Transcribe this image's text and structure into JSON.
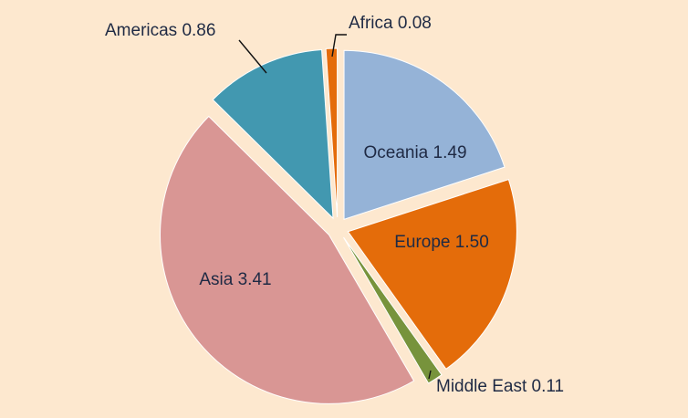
{
  "chart_data": {
    "type": "pie",
    "title": "",
    "slices": [
      {
        "name": "Oceania",
        "value": 1.49,
        "value_label": "1.49",
        "color": "#95b3d7"
      },
      {
        "name": "Europe",
        "value": 1.5,
        "value_label": "1.50",
        "color": "#e46c0a"
      },
      {
        "name": "Middle East",
        "value": 0.11,
        "value_label": "0.11",
        "color": "#77933c"
      },
      {
        "name": "Asia",
        "value": 3.41,
        "value_label": "3.41",
        "color": "#d99694"
      },
      {
        "name": "Americas",
        "value": 0.86,
        "value_label": "0.86",
        "color": "#4298b0"
      },
      {
        "name": "Africa",
        "value": 0.08,
        "value_label": "0.08",
        "color": "#e46c0a"
      }
    ],
    "legend": "none",
    "exploded": true
  },
  "colors": {
    "background": "#fde8cf",
    "label_text": "#1f2a44"
  }
}
